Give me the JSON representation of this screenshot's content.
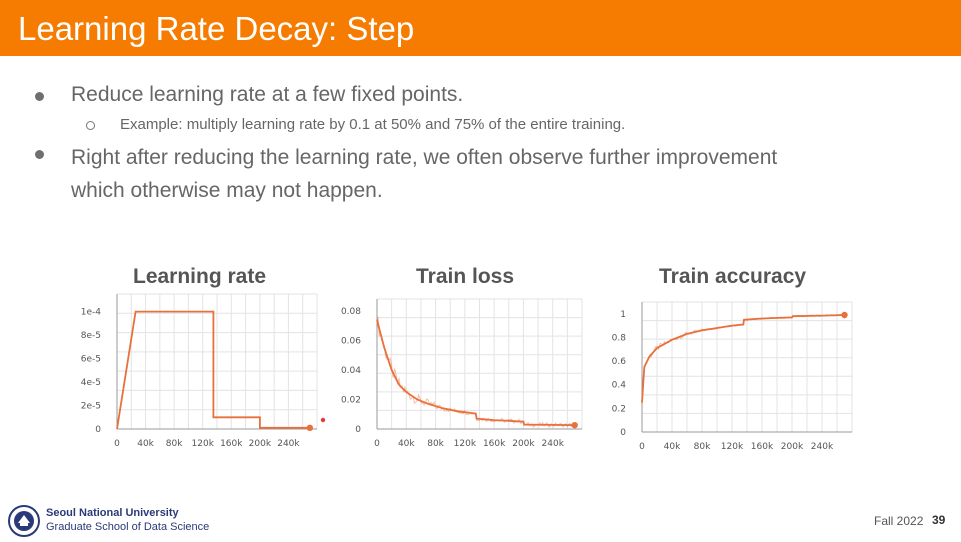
{
  "slide": {
    "title": "Learning Rate Decay: Step",
    "bullets": [
      {
        "text": "Reduce learning rate at a few fixed points.",
        "sub": [
          "Example: multiply learning rate by 0.1 at 50% and 75% of the entire training."
        ]
      },
      {
        "line1": "Right after reducing the learning rate, we often observe further improvement",
        "line2": "which otherwise may not happen."
      }
    ]
  },
  "footer": {
    "university": "Seoul National University",
    "school": "Graduate School of Data Science",
    "term": "Fall 2022",
    "page": "39"
  },
  "colors": {
    "header": "#f57c00",
    "series": "#e8703a"
  },
  "chart_data": [
    {
      "type": "line",
      "title": "Learning rate",
      "x_ticks": [
        "0",
        "40k",
        "80k",
        "120k",
        "160k",
        "200k",
        "240k"
      ],
      "y_ticks": [
        "0",
        "2e-5",
        "4e-5",
        "6e-5",
        "8e-5",
        "1e-4"
      ],
      "xlim": [
        0,
        280000
      ],
      "ylim": [
        0,
        0.0001
      ],
      "x": [
        0,
        26000,
        135000,
        135000,
        200000,
        200000,
        270000
      ],
      "y": [
        0,
        0.0001,
        0.0001,
        1e-05,
        1e-05,
        1e-06,
        1e-06
      ],
      "grid": true
    },
    {
      "type": "line",
      "title": "Train loss",
      "x_ticks": [
        "0",
        "40k",
        "80k",
        "120k",
        "160k",
        "200k",
        "240k"
      ],
      "y_ticks": [
        "0",
        "0.02",
        "0.04",
        "0.06",
        "0.08"
      ],
      "xlim": [
        0,
        280000
      ],
      "ylim": [
        0,
        0.088
      ],
      "x": [
        0,
        3000,
        10000,
        20000,
        30000,
        40000,
        55000,
        70000,
        90000,
        110000,
        135000,
        136000,
        160000,
        200000,
        201000,
        240000,
        270000
      ],
      "y": [
        0.074,
        0.068,
        0.055,
        0.04,
        0.03,
        0.025,
        0.02,
        0.017,
        0.014,
        0.012,
        0.0105,
        0.007,
        0.006,
        0.005,
        0.003,
        0.0028,
        0.0026
      ],
      "grid": true
    },
    {
      "type": "line",
      "title": "Train accuracy",
      "x_ticks": [
        "0",
        "40k",
        "80k",
        "120k",
        "160k",
        "200k",
        "240k"
      ],
      "y_ticks": [
        "0",
        "0.2",
        "0.4",
        "0.6",
        "0.8",
        "1"
      ],
      "xlim": [
        0,
        280000
      ],
      "ylim": [
        0,
        1.1
      ],
      "x": [
        0,
        3000,
        10000,
        20000,
        40000,
        60000,
        80000,
        100000,
        120000,
        135000,
        136000,
        160000,
        200000,
        201000,
        240000,
        270000
      ],
      "y": [
        0.25,
        0.55,
        0.64,
        0.71,
        0.78,
        0.83,
        0.86,
        0.88,
        0.9,
        0.91,
        0.95,
        0.96,
        0.97,
        0.98,
        0.985,
        0.99
      ],
      "grid": true
    }
  ]
}
